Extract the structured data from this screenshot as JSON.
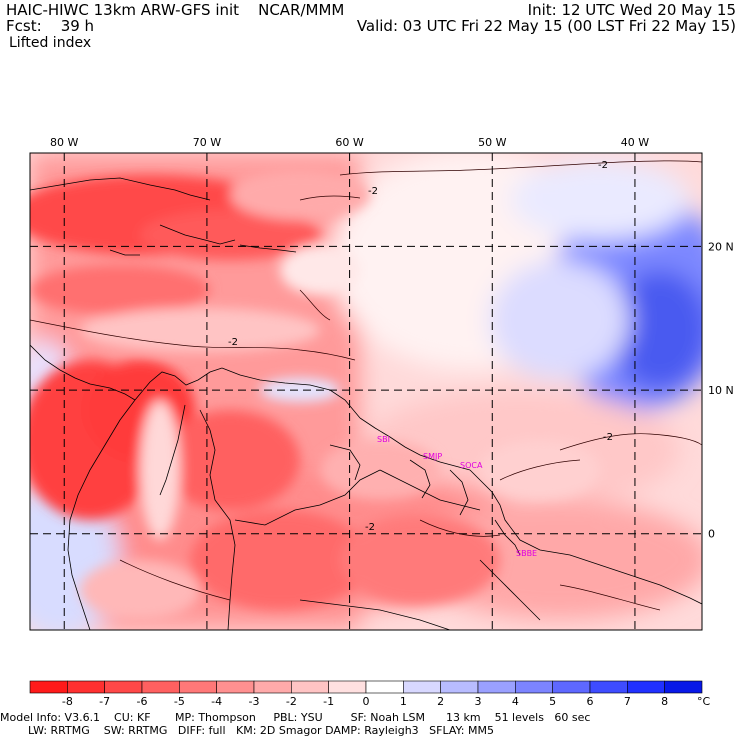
{
  "header": {
    "model_title": "HAIC-HIWC 13km ARW-GFS init    NCAR/MMM",
    "fcst_label": "Fcst:",
    "fcst_value": "39 h",
    "field_name": "Lifted index",
    "init_time": "Init: 12 UTC Wed 20 May 15",
    "valid_time": "Valid: 03 UTC Fri 22 May 15 (00 LST Fri 22 May 15)"
  },
  "map": {
    "longitude_labels": [
      "80 W",
      "70 W",
      "60 W",
      "50 W",
      "40 W"
    ],
    "longitude_values": [
      -80,
      -70,
      -60,
      -50,
      -40
    ],
    "latitude_labels": [
      "20 N",
      "10 N",
      "0"
    ],
    "latitude_values": [
      20,
      10,
      0
    ],
    "lon_range": [
      -82.4,
      -35.3
    ],
    "lat_range": [
      -6.7,
      26.5
    ],
    "stations": [
      {
        "code": "SBI",
        "lon": -58.0,
        "lat": 6.6
      },
      {
        "code": "SMJP",
        "lon": -55.0,
        "lat": 5.5
      },
      {
        "code": "SOCA",
        "lon": -52.4,
        "lat": 4.8
      },
      {
        "code": "SBBE",
        "lon": -48.6,
        "lat": -1.4
      }
    ],
    "contour_labels": [
      "-2",
      "-2",
      "-2",
      "-2",
      "-2"
    ],
    "colors": {
      "strong_negative": "#ff2020",
      "negative": "#ff8080",
      "weak_negative": "#ffc8c8",
      "neutral": "#fff0f0",
      "weak_positive": "#d8dcff",
      "positive": "#6070f0",
      "border": "#000000"
    }
  },
  "colorbar": {
    "labels": [
      "-8",
      "-7",
      "-6",
      "-5",
      "-4",
      "-3",
      "-2",
      "-1",
      "0",
      "1",
      "2",
      "3",
      "4",
      "5",
      "6",
      "7",
      "8"
    ],
    "unit": "°C",
    "colors": [
      "#ff1a1a",
      "#ff3030",
      "#ff4848",
      "#ff6060",
      "#ff7878",
      "#ff9090",
      "#ffaaaa",
      "#ffc4c4",
      "#ffe0e0",
      "#ffffff",
      "#d8d8ff",
      "#b8bcff",
      "#9aa0ff",
      "#7c84ff",
      "#5e68ff",
      "#3e4cff",
      "#2030ff",
      "#0818e8"
    ]
  },
  "footer": {
    "line1": "Model Info: V3.6.1    CU: KF       MP: Thompson     PBL: YSU        SF: Noah LSM      13 km    51 levels   60 sec",
    "line2": "        LW: RRTMG    SW: RRTMG   DIFF: full   KM: 2D Smagor DAMP: Rayleigh3   SFLAY: MM5"
  }
}
